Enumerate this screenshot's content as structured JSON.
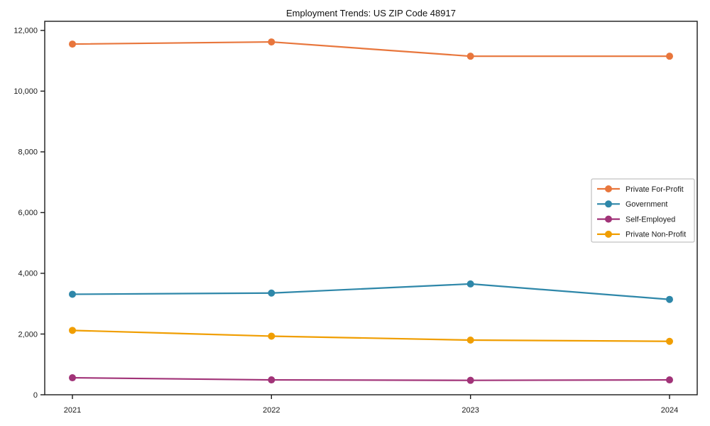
{
  "chart_data": {
    "type": "line",
    "title": "Employment Trends: US ZIP Code 48917",
    "xlabel": "",
    "ylabel": "",
    "x": [
      2021,
      2022,
      2023,
      2024
    ],
    "x_tick_labels": [
      "2021",
      "2022",
      "2023",
      "2024"
    ],
    "y_ticks": [
      0,
      2000,
      4000,
      6000,
      8000,
      10000,
      12000
    ],
    "y_tick_labels": [
      "0",
      "2,000",
      "4,000",
      "6,000",
      "8,000",
      "10,000",
      "12,000"
    ],
    "ylim": [
      0,
      12300
    ],
    "grid": false,
    "marker": "circle",
    "legend_position": "center-right",
    "series": [
      {
        "name": "Private For-Profit",
        "color": "#e8763c",
        "values": [
          11550,
          11620,
          11150,
          11150
        ]
      },
      {
        "name": "Government",
        "color": "#2e87a9",
        "values": [
          3310,
          3350,
          3650,
          3140
        ]
      },
      {
        "name": "Self-Employed",
        "color": "#a13378",
        "values": [
          560,
          490,
          475,
          490
        ]
      },
      {
        "name": "Private Non-Profit",
        "color": "#f09e02",
        "values": [
          2120,
          1930,
          1800,
          1760
        ]
      }
    ],
    "axis_color": "#1a1a1a",
    "text_color": "#1a1a1a",
    "legend_border_color": "#b3b3b3"
  }
}
